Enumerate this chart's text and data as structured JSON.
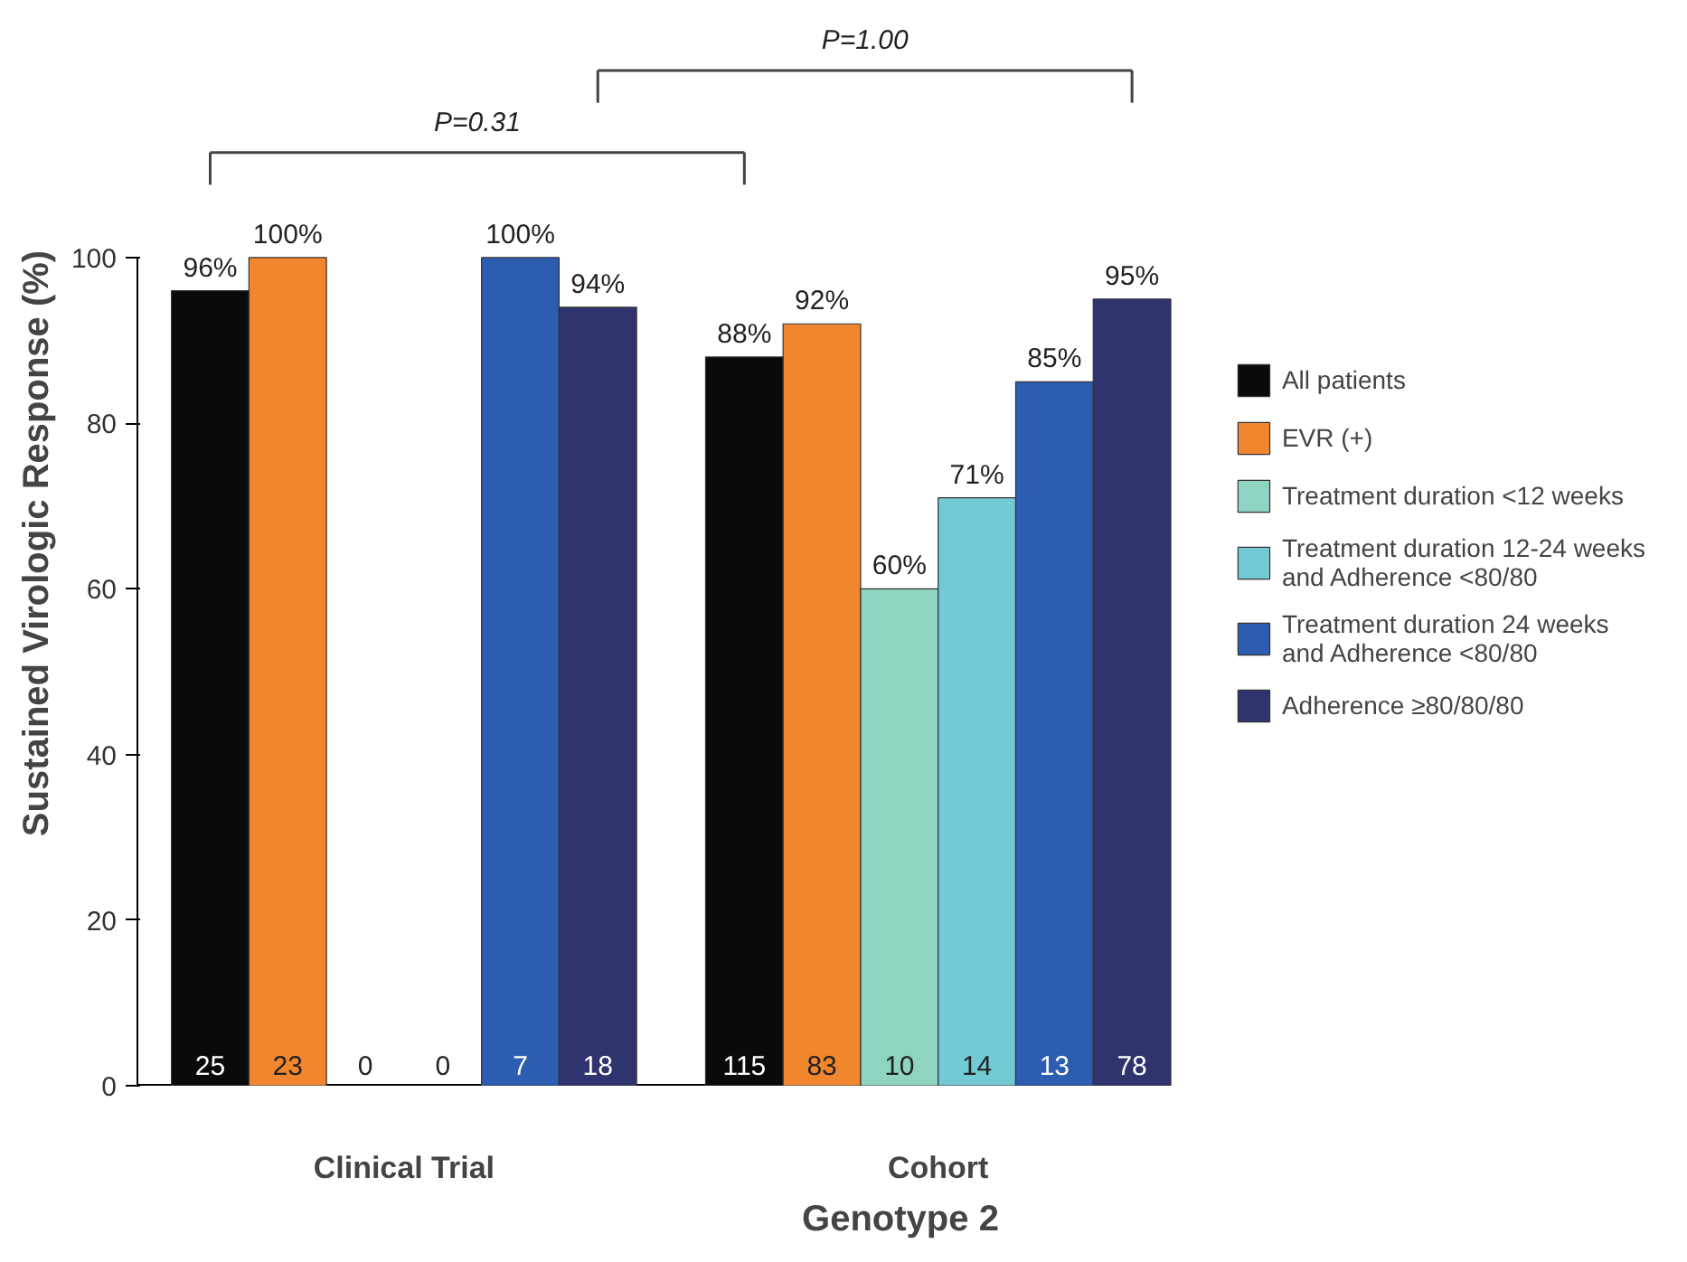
{
  "chart_data": {
    "type": "bar",
    "xlabel": "Genotype 2",
    "ylabel": "Sustained Virologic Response (%)",
    "categories": [
      "Clinical Trial",
      "Cohort"
    ],
    "ylim": [
      0,
      100
    ],
    "yticks": [
      0,
      20,
      40,
      60,
      80,
      100
    ],
    "grid": false,
    "legend": "right",
    "series": [
      {
        "name": "All patients",
        "color": "#0a0a0a",
        "values": [
          96,
          88
        ],
        "value_labels": [
          "96%",
          "88%"
        ]
      },
      {
        "name": "EVR (+)",
        "color": "#f0862e",
        "values": [
          100,
          92
        ],
        "value_labels": [
          "100%",
          "92%"
        ]
      },
      {
        "name": "Treatment duration <12 weeks",
        "color": "#8fd3c2",
        "values": [
          null,
          60
        ],
        "value_labels": [
          null,
          "60%"
        ]
      },
      {
        "name": "Treatment duration 12-24 weeks and Adherence <80/80",
        "color": "#72cad4",
        "values": [
          null,
          71
        ],
        "value_labels": [
          null,
          "71%"
        ]
      },
      {
        "name": "Treatment duration 24 weeks and Adherence <80/80",
        "color": "#2c5db0",
        "values": [
          100,
          85
        ],
        "value_labels": [
          "100%",
          "85%"
        ]
      },
      {
        "name": "Adherence ≥80/80/80",
        "color": "#2f336e",
        "values": [
          94,
          95
        ],
        "value_labels": [
          "94%",
          "95%"
        ]
      }
    ],
    "annotations": [
      "P=0.31",
      "P=1.00",
      "25",
      "23",
      "0",
      "0",
      "7",
      "18",
      "115",
      "83",
      "10",
      "14",
      "13",
      "78"
    ]
  }
}
